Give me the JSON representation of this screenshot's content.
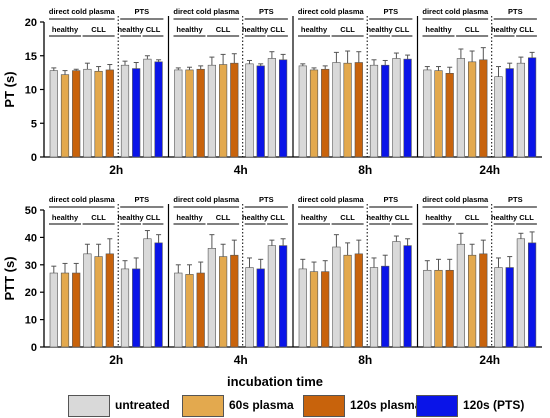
{
  "chart_data": [
    {
      "type": "bar",
      "ylabel": "PT (s)",
      "ylim": [
        0,
        20
      ],
      "yticks": [
        0,
        5,
        10,
        15,
        20
      ],
      "time_points": [
        "2h",
        "4h",
        "8h",
        "24h"
      ],
      "groups": [
        {
          "time": "2h",
          "values": [
            12.8,
            12.2,
            12.8,
            13.0,
            12.7,
            12.9,
            13.6,
            13.1,
            14.5,
            14.1
          ],
          "errors": [
            0.4,
            0.6,
            0.2,
            0.9,
            0.7,
            0.8,
            0.6,
            0.9,
            0.5,
            0.3
          ]
        },
        {
          "time": "4h",
          "values": [
            12.9,
            12.9,
            13.0,
            13.6,
            13.7,
            13.9,
            13.8,
            13.5,
            14.6,
            14.4
          ],
          "errors": [
            0.3,
            0.4,
            0.5,
            1.2,
            1.5,
            1.4,
            0.5,
            0.3,
            1.0,
            0.8
          ]
        },
        {
          "time": "8h",
          "values": [
            13.5,
            12.9,
            13.0,
            14.0,
            13.9,
            14.0,
            13.6,
            13.6,
            14.6,
            14.5
          ],
          "errors": [
            0.3,
            0.3,
            0.5,
            1.5,
            1.8,
            1.6,
            0.8,
            0.7,
            0.8,
            0.6
          ]
        },
        {
          "time": "24h",
          "values": [
            12.9,
            12.8,
            12.4,
            14.6,
            14.1,
            14.4,
            11.9,
            13.1,
            13.9,
            14.7
          ],
          "errors": [
            0.5,
            0.6,
            0.9,
            1.4,
            1.6,
            1.8,
            1.5,
            0.8,
            0.9,
            0.8
          ]
        }
      ]
    },
    {
      "type": "bar",
      "ylabel": "PTT (s)",
      "ylim": [
        0,
        50
      ],
      "yticks": [
        0,
        10,
        20,
        30,
        40,
        50
      ],
      "time_points": [
        "2h",
        "4h",
        "8h",
        "24h"
      ],
      "groups": [
        {
          "time": "2h",
          "values": [
            27.0,
            27.0,
            27.0,
            34.0,
            33.0,
            34.0,
            28.5,
            28.5,
            39.5,
            38.0
          ],
          "errors": [
            2.5,
            3.5,
            3.5,
            3.5,
            4.5,
            5.5,
            3.0,
            4.0,
            3.0,
            3.0
          ]
        },
        {
          "time": "4h",
          "values": [
            27.0,
            26.5,
            27.0,
            36.0,
            33.0,
            33.5,
            29.0,
            28.5,
            37.0,
            37.0
          ],
          "errors": [
            3.0,
            3.5,
            4.0,
            5.0,
            4.5,
            5.5,
            3.5,
            3.5,
            2.0,
            2.5
          ]
        },
        {
          "time": "8h",
          "values": [
            28.5,
            27.5,
            27.5,
            36.5,
            33.5,
            34.0,
            29.0,
            29.5,
            38.5,
            37.0
          ],
          "errors": [
            3.5,
            3.5,
            4.0,
            4.5,
            4.5,
            5.0,
            3.5,
            4.0,
            2.0,
            2.5
          ]
        },
        {
          "time": "24h",
          "values": [
            28.0,
            28.0,
            28.0,
            37.5,
            33.5,
            34.0,
            29.0,
            29.0,
            39.5,
            38.0
          ],
          "errors": [
            3.5,
            4.0,
            4.0,
            4.0,
            4.0,
            5.0,
            3.5,
            4.0,
            2.0,
            4.0
          ]
        }
      ]
    }
  ],
  "bar_color_order": [
    "untreated",
    "60s plasma",
    "120s plasma",
    "untreated",
    "60s plasma",
    "120s plasma",
    "untreated",
    "120s (PTS)",
    "untreated",
    "120s (PTS)"
  ],
  "brackets": {
    "direct": "direct cold plasma",
    "pts": "PTS",
    "healthy": "healthy",
    "cll": "CLL"
  },
  "xaxis_title": "incubation time",
  "legend": [
    {
      "label": "untreated",
      "color": "#d9d9d9"
    },
    {
      "label": "60s plasma",
      "color": "#e3a94e"
    },
    {
      "label": "120s plasma",
      "color": "#c8630c"
    },
    {
      "label": "120s (PTS)",
      "color": "#0a14e8"
    }
  ]
}
